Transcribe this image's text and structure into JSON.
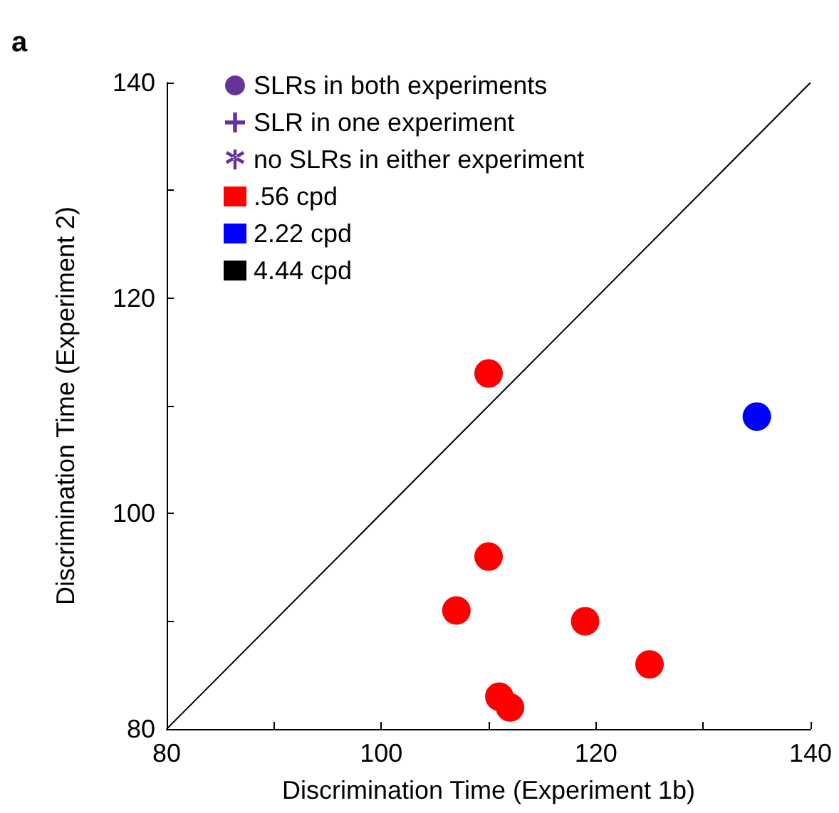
{
  "chart_data": {
    "type": "scatter",
    "xlabel": "Discrimination Time (Experiment 1b)",
    "ylabel": "Discrimination Time (Experiment 2)",
    "annotations": [
      "a"
    ],
    "xlim": [
      80,
      140
    ],
    "xticks": [
      80,
      {
        "value": 90,
        "label": null
      },
      100,
      {
        "value": 110,
        "label": null
      },
      120,
      {
        "value": 130,
        "label": null
      },
      140
    ],
    "ylim": [
      80,
      140
    ],
    "yticks": [
      80,
      {
        "value": 90,
        "label": null
      },
      100,
      {
        "value": 110,
        "label": null
      },
      120,
      {
        "value": 130,
        "label": null
      },
      140
    ],
    "grid": false,
    "legend": "top left",
    "marker": "circle",
    "series": [
      {
        "name": "SLRs in both experiments",
        "color": "#663399",
        "marker": "circle"
      },
      {
        "name": "SLR in one experiment",
        "color": "#663399",
        "marker": "cross"
      },
      {
        "name": "no SLRs in either experiment",
        "color": "#663399",
        "marker": "star"
      },
      {
        "name": ".56 cpd",
        "color": "#ff0000",
        "x": [
          110,
          110,
          107,
          119,
          125,
          111,
          112
        ],
        "values": [
          113,
          96,
          91,
          90,
          86,
          83,
          82
        ]
      },
      {
        "name": "2.22 cpd",
        "color": "#0000ff",
        "x": [
          135
        ],
        "values": [
          109
        ]
      },
      {
        "name": "4.44 cpd",
        "color": "#000000"
      },
      {
        "type": "line",
        "color": "#000000",
        "marker": "none",
        "line_style": "solid",
        "x": [
          80,
          140
        ],
        "values": [
          80,
          140
        ]
      }
    ]
  }
}
